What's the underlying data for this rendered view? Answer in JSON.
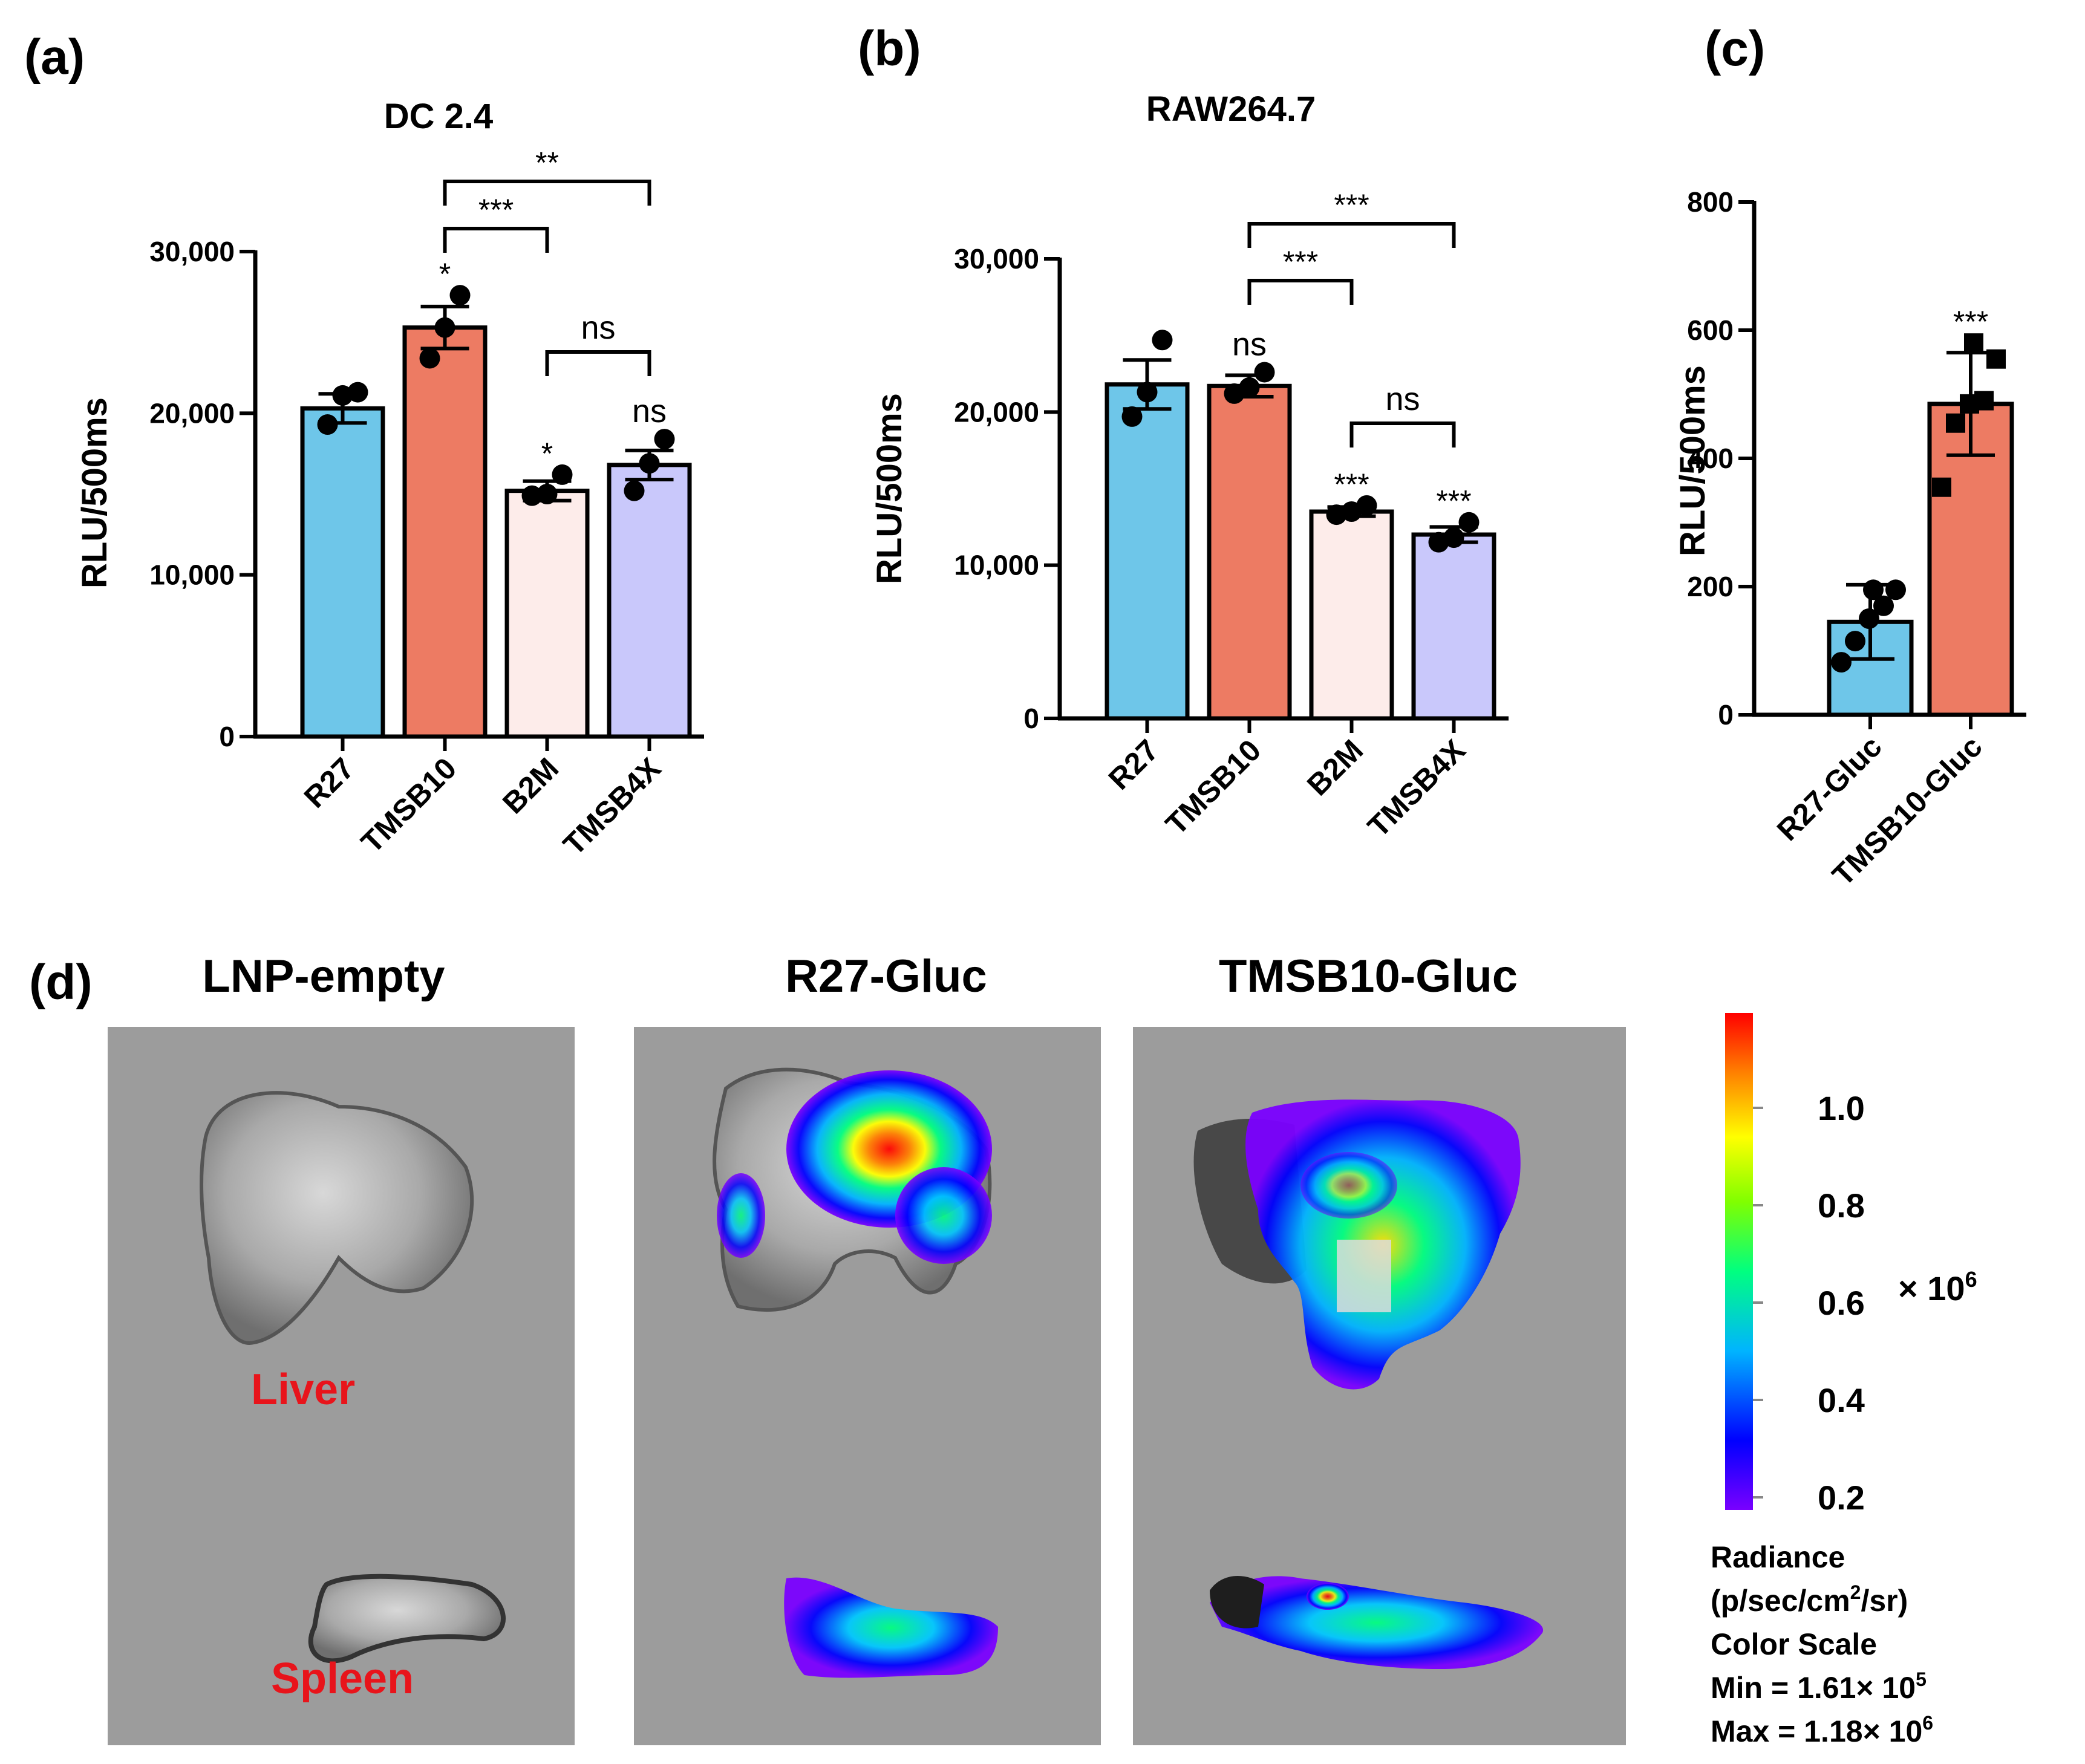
{
  "colors": {
    "r27": "#6ec6e9",
    "tmsb10": "#ed7b63",
    "b2m": "#fdecea",
    "tmsb4x": "#c9c8fb",
    "organ_label": "#e8141b"
  },
  "panels": {
    "a": {
      "letter": "(a)"
    },
    "b": {
      "letter": "(b)"
    },
    "c": {
      "letter": "(c)"
    },
    "d": {
      "letter": "(d)"
    }
  },
  "chart_data": [
    {
      "id": "a",
      "type": "bar",
      "title": "DC 2.4",
      "ylabel": "RLU/500ms",
      "xlabel": "",
      "ylim": [
        0,
        30000
      ],
      "yticks": [
        0,
        10000,
        20000,
        30000
      ],
      "ytick_labels": [
        "0",
        "10,000",
        "20,000",
        "30,000"
      ],
      "categories": [
        "R27",
        "TMSB10",
        "B2M",
        "TMSB4X"
      ],
      "values": [
        20300,
        25300,
        15200,
        16800
      ],
      "sem": [
        900,
        1300,
        600,
        900
      ],
      "points": [
        [
          19300,
          21100,
          21300
        ],
        [
          23400,
          25300,
          27300
        ],
        [
          14900,
          15000,
          16200
        ],
        [
          15200,
          16900,
          18400
        ]
      ],
      "point_marker": "circle",
      "bar_marks": [
        "",
        "*",
        "*",
        "ns"
      ],
      "brackets": [
        {
          "from": "TMSB10",
          "to": "TMSB4X",
          "label": "**"
        },
        {
          "from": "TMSB10",
          "to": "B2M",
          "label": "***"
        },
        {
          "from": "B2M",
          "to": "TMSB4X",
          "label": "ns"
        }
      ]
    },
    {
      "id": "b",
      "type": "bar",
      "title": "RAW264.7",
      "ylabel": "RLU/500ms",
      "xlabel": "",
      "ylim": [
        0,
        30000
      ],
      "yticks": [
        0,
        10000,
        20000,
        30000
      ],
      "ytick_labels": [
        "0",
        "10,000",
        "20,000",
        "30,000"
      ],
      "categories": [
        "R27",
        "TMSB10",
        "B2M",
        "TMSB4X"
      ],
      "values": [
        21800,
        21700,
        13500,
        12000
      ],
      "sem": [
        1600,
        700,
        300,
        500
      ],
      "points": [
        [
          19700,
          21300,
          24700
        ],
        [
          21200,
          21600,
          22600
        ],
        [
          13300,
          13500,
          13900
        ],
        [
          11500,
          11800,
          12800
        ]
      ],
      "point_marker": "circle",
      "bar_marks": [
        "",
        "ns",
        "***",
        "***"
      ],
      "brackets": [
        {
          "from": "TMSB10",
          "to": "TMSB4X",
          "label": "***"
        },
        {
          "from": "TMSB10",
          "to": "B2M",
          "label": "***"
        },
        {
          "from": "B2M",
          "to": "TMSB4X",
          "label": "ns"
        }
      ]
    },
    {
      "id": "c",
      "type": "bar",
      "title": "",
      "ylabel": "RLU/500ms",
      "xlabel": "",
      "ylim": [
        0,
        800
      ],
      "yticks": [
        0,
        200,
        400,
        600,
        800
      ],
      "ytick_labels": [
        "0",
        "200",
        "400",
        "600",
        "800"
      ],
      "categories": [
        "R27-Gluc",
        "TMSB10-Gluc"
      ],
      "values": [
        145,
        485
      ],
      "sd": [
        58,
        80
      ],
      "points": [
        [
          82,
          115,
          150,
          170,
          195,
          195
        ],
        [
          355,
          455,
          485,
          490,
          555,
          580
        ]
      ],
      "point_marker": [
        "circle",
        "square"
      ],
      "bar_marks": [
        "",
        "***"
      ],
      "brackets": []
    }
  ],
  "imaging": {
    "panels": [
      {
        "title": "LNP-empty",
        "organ_top": "Liver",
        "organ_bottom": "Spleen"
      },
      {
        "title": "R27-Gluc"
      },
      {
        "title": "TMSB10-Gluc"
      }
    ],
    "color_bar": {
      "ticks": [
        "1.0",
        "0.8",
        "0.6",
        "0.4",
        "0.2"
      ],
      "multiplier": "× 10",
      "multiplier_exp": "6",
      "gradient": [
        "#7a00ff",
        "#0000ff",
        "#00b4ff",
        "#00ff80",
        "#80ff00",
        "#ffff00",
        "#ff8000",
        "#ff0000"
      ]
    },
    "notes": {
      "line1": "Radiance",
      "line2_pre": "(p/sec/cm",
      "line2_sup": "2",
      "line2_post": "/sr)",
      "line3": "Color Scale",
      "min_pre": "Min = 1.61× 10",
      "min_exp": "5",
      "max_pre": "Max = 1.18× 10",
      "max_exp": "6"
    }
  }
}
